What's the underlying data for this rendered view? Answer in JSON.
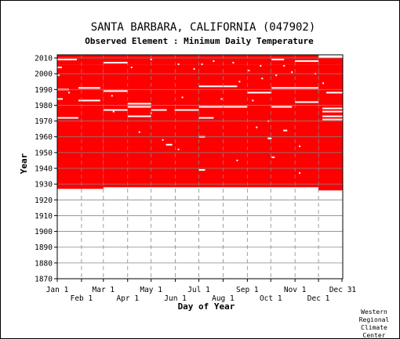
{
  "chart_data": {
    "type": "heatmap",
    "title": "SANTA BARBARA, CALIFORNIA   (047902)",
    "subtitle": "Observed Element : Minimum Daily Temperature",
    "xlabel": "Day of Year",
    "ylabel": "Year",
    "ylim": [
      1870,
      2012
    ],
    "y_ticks": [
      1870,
      1880,
      1890,
      1900,
      1910,
      1920,
      1930,
      1940,
      1950,
      1960,
      1970,
      1980,
      1990,
      2000,
      2010
    ],
    "x_ticks_upper": [
      "Jan 1",
      "Mar 1",
      "May 1",
      "Jul 1",
      "Sep 1",
      "Nov 1",
      "Dec 31"
    ],
    "x_ticks_lower": [
      "Feb 1",
      "Apr 1",
      "Jun 1",
      "Aug 1",
      "Oct 1",
      "Dec 1"
    ],
    "x_tick_days": [
      1,
      32,
      60,
      91,
      121,
      152,
      182,
      213,
      244,
      274,
      305,
      335,
      365
    ],
    "grid": true,
    "colors": {
      "observed": "#ff0000",
      "missing": "#ffffff",
      "grid": "#888888"
    },
    "month_bands": [
      {
        "start_day": 1,
        "end_day": 59,
        "first_year": 1927
      },
      {
        "start_day": 60,
        "end_day": 334,
        "first_year": 1928
      },
      {
        "start_day": 335,
        "end_day": 365,
        "first_year": 1926
      }
    ],
    "last_year_full": 2006,
    "last_year_partial": 2012,
    "missing_lines": [
      {
        "year": 2009,
        "start_day": 1,
        "end_day": 25
      },
      {
        "year": 2004,
        "start_day": 1,
        "end_day": 6
      },
      {
        "year": 1999,
        "start_day": 1,
        "end_day": 3
      },
      {
        "year": 1990,
        "start_day": 1,
        "end_day": 15
      },
      {
        "year": 1984,
        "start_day": 1,
        "end_day": 7
      },
      {
        "year": 1972,
        "start_day": 1,
        "end_day": 27
      },
      {
        "year": 1991,
        "start_day": 28,
        "end_day": 55
      },
      {
        "year": 1983,
        "start_day": 28,
        "end_day": 55
      },
      {
        "year": 2007,
        "start_day": 60,
        "end_day": 90
      },
      {
        "year": 1989,
        "start_day": 60,
        "end_day": 90
      },
      {
        "year": 1977,
        "start_day": 60,
        "end_day": 90
      },
      {
        "year": 1981,
        "start_day": 91,
        "end_day": 120
      },
      {
        "year": 1979,
        "start_day": 91,
        "end_day": 120
      },
      {
        "year": 1973,
        "start_day": 91,
        "end_day": 120
      },
      {
        "year": 1977,
        "start_day": 121,
        "end_day": 140
      },
      {
        "year": 1977,
        "start_day": 151,
        "end_day": 181
      },
      {
        "year": 1955,
        "start_day": 140,
        "end_day": 147
      },
      {
        "year": 1992,
        "start_day": 182,
        "end_day": 212
      },
      {
        "year": 1979,
        "start_day": 182,
        "end_day": 212
      },
      {
        "year": 1972,
        "start_day": 182,
        "end_day": 200
      },
      {
        "year": 1960,
        "start_day": 182,
        "end_day": 189
      },
      {
        "year": 1939,
        "start_day": 182,
        "end_day": 189
      },
      {
        "year": 1979,
        "start_day": 213,
        "end_day": 243
      },
      {
        "year": 1992,
        "start_day": 213,
        "end_day": 230
      },
      {
        "year": 1988,
        "start_day": 244,
        "end_day": 274
      },
      {
        "year": 1979,
        "start_day": 275,
        "end_day": 300
      },
      {
        "year": 2009,
        "start_day": 275,
        "end_day": 290
      },
      {
        "year": 1991,
        "start_day": 275,
        "end_day": 334
      },
      {
        "year": 1982,
        "start_day": 305,
        "end_day": 334
      },
      {
        "year": 2008,
        "start_day": 305,
        "end_day": 334
      },
      {
        "year": 1988,
        "start_day": 345,
        "end_day": 365
      },
      {
        "year": 1978,
        "start_day": 340,
        "end_day": 365
      },
      {
        "year": 1976,
        "start_day": 340,
        "end_day": 365
      },
      {
        "year": 1973,
        "start_day": 340,
        "end_day": 365
      },
      {
        "year": 1971,
        "start_day": 340,
        "end_day": 365
      },
      {
        "year": 1964,
        "start_day": 290,
        "end_day": 294
      },
      {
        "year": 1959,
        "start_day": 270,
        "end_day": 274
      },
      {
        "year": 1947,
        "start_day": 275,
        "end_day": 278
      }
    ],
    "missing_dots": [
      [
        2009,
        120
      ],
      [
        2008,
        200
      ],
      [
        2007,
        225
      ],
      [
        2006,
        155
      ],
      [
        2006,
        185
      ],
      [
        2005,
        260
      ],
      [
        2005,
        290
      ],
      [
        2004,
        95
      ],
      [
        2003,
        175
      ],
      [
        2002,
        245
      ],
      [
        2001,
        300
      ],
      [
        2000,
        330
      ],
      [
        1999,
        280
      ],
      [
        1997,
        262
      ],
      [
        1995,
        233
      ],
      [
        1994,
        340
      ],
      [
        1988,
        15
      ],
      [
        1986,
        70
      ],
      [
        1985,
        160
      ],
      [
        1984,
        210
      ],
      [
        1983,
        250
      ],
      [
        1976,
        72
      ],
      [
        1975,
        120
      ],
      [
        1970,
        270
      ],
      [
        1966,
        255
      ],
      [
        1963,
        105
      ],
      [
        1958,
        135
      ],
      [
        1954,
        310
      ],
      [
        1952,
        155
      ],
      [
        1945,
        230
      ],
      [
        1937,
        310
      ]
    ]
  },
  "credit": [
    "Western",
    "Regional",
    "Climate",
    "Center"
  ]
}
